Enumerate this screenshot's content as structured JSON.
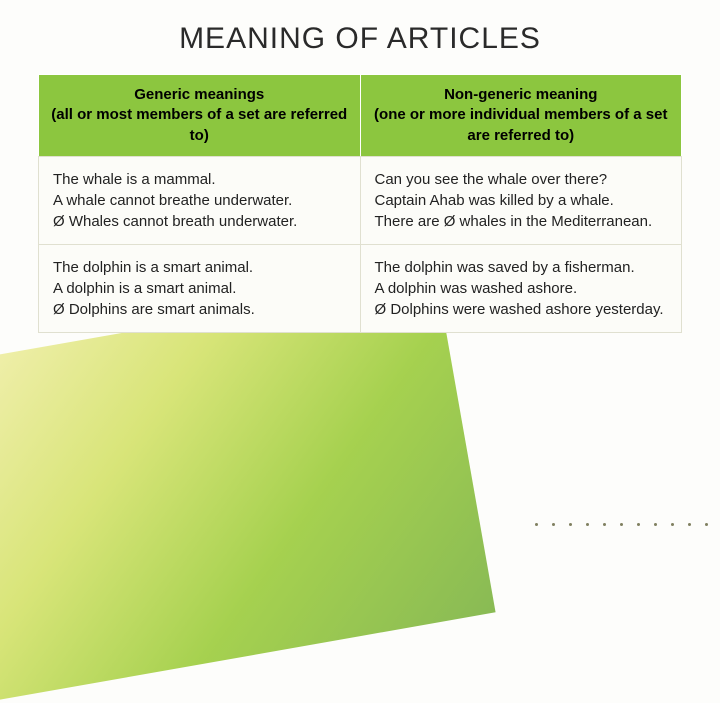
{
  "title": "MEANING OF ARTICLES",
  "colors": {
    "header_bg": "#8cc63f",
    "header_text": "#000000",
    "cell_bg": "#fcfcf8",
    "cell_border": "#e0e0d0",
    "title_color": "#2a2a2a",
    "gradient_from": "#f5f0b0",
    "gradient_to": "#7cb342"
  },
  "table": {
    "headers": [
      {
        "line1": "Generic meanings",
        "line2": "(all or most members of a set are referred to)"
      },
      {
        "line1": "Non-generic meaning",
        "line2": "(one or more individual members of a set are referred to)"
      }
    ],
    "rows": [
      {
        "left": {
          "l1": "The whale is a mammal.",
          "l2": "A whale cannot breathe underwater.",
          "l3": "Ø Whales cannot breath underwater."
        },
        "right": {
          "l1": "Can you see the whale over there?",
          "l2": "Captain Ahab was killed by a whale.",
          "l3": "There are Ø whales in the Mediterranean."
        }
      },
      {
        "left": {
          "l1": "The dolphin is a smart animal.",
          "l2": "A dolphin is a smart animal.",
          "l3": "Ø Dolphins are smart animals."
        },
        "right": {
          "l1": "The dolphin was saved by a fisherman.",
          "l2": "A dolphin was washed ashore.",
          "l3": "Ø Dolphins were washed ashore yesterday."
        }
      }
    ]
  }
}
